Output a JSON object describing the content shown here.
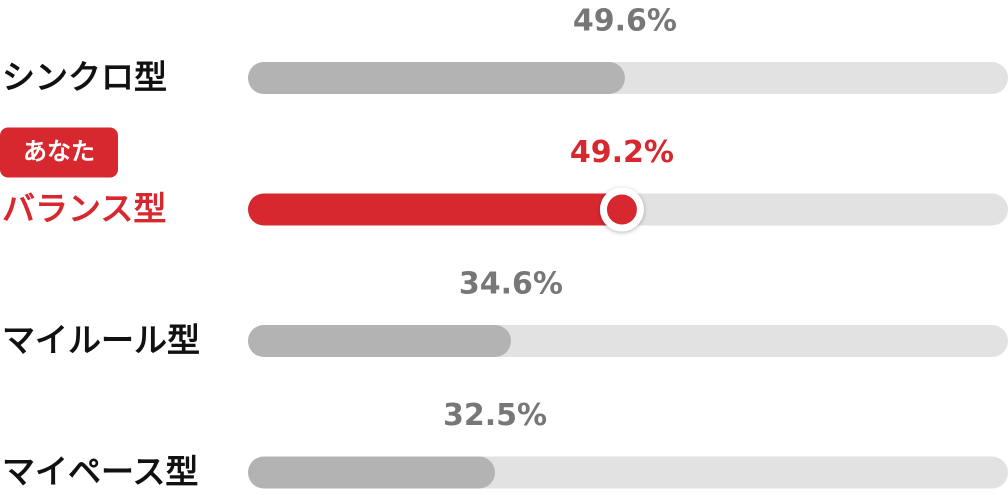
{
  "chart_data": {
    "type": "bar",
    "orientation": "horizontal",
    "categories": [
      "シンクロ型",
      "バランス型",
      "マイルール型",
      "マイペース型"
    ],
    "values": [
      49.6,
      49.2,
      34.6,
      32.5
    ],
    "value_labels": [
      "49.6%",
      "49.2%",
      "34.6%",
      "32.5%"
    ],
    "colors": [
      "#b3b3b3",
      "#d7282f",
      "#b3b3b3",
      "#b3b3b3"
    ],
    "track_color": "#e2e2e2",
    "xlim": [
      0,
      100
    ],
    "badge": {
      "text": "あなた",
      "index": 1
    }
  }
}
